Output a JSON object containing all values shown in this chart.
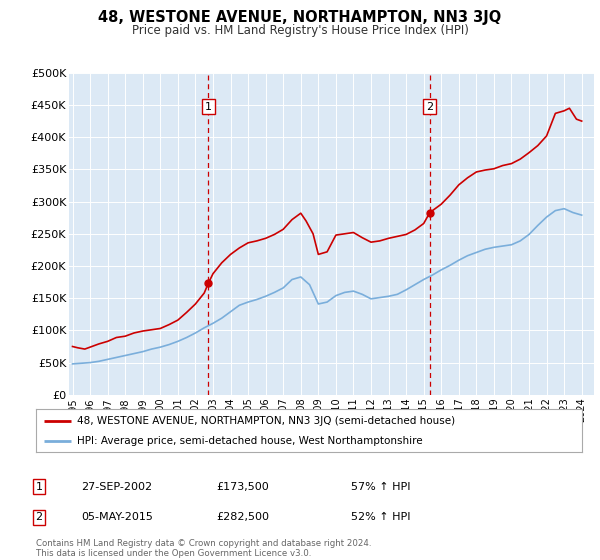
{
  "title": "48, WESTONE AVENUE, NORTHAMPTON, NN3 3JQ",
  "subtitle": "Price paid vs. HM Land Registry's House Price Index (HPI)",
  "background_color": "#ffffff",
  "plot_bg_color": "#dce9f5",
  "grid_color": "#ffffff",
  "ylim": [
    0,
    500000
  ],
  "yticks": [
    0,
    50000,
    100000,
    150000,
    200000,
    250000,
    300000,
    350000,
    400000,
    450000,
    500000
  ],
  "ytick_labels": [
    "£0",
    "£50K",
    "£100K",
    "£150K",
    "£200K",
    "£250K",
    "£300K",
    "£350K",
    "£400K",
    "£450K",
    "£500K"
  ],
  "xlim_start": 1994.8,
  "xlim_end": 2024.7,
  "xtick_years": [
    1995,
    1996,
    1997,
    1998,
    1999,
    2000,
    2001,
    2002,
    2003,
    2004,
    2005,
    2006,
    2007,
    2008,
    2009,
    2010,
    2011,
    2012,
    2013,
    2014,
    2015,
    2016,
    2017,
    2018,
    2019,
    2020,
    2021,
    2022,
    2023,
    2024
  ],
  "sale1_date": 2002.74,
  "sale1_price": 173500,
  "sale1_label": "1",
  "sale2_date": 2015.34,
  "sale2_price": 282500,
  "sale2_label": "2",
  "house_line_color": "#cc0000",
  "hpi_line_color": "#7aaedb",
  "dashed_line_color": "#cc0000",
  "legend_entries": [
    "48, WESTONE AVENUE, NORTHAMPTON, NN3 3JQ (semi-detached house)",
    "HPI: Average price, semi-detached house, West Northamptonshire"
  ],
  "table_row1": [
    "1",
    "27-SEP-2002",
    "£173,500",
    "57% ↑ HPI"
  ],
  "table_row2": [
    "2",
    "05-MAY-2015",
    "£282,500",
    "52% ↑ HPI"
  ],
  "footnote": "Contains HM Land Registry data © Crown copyright and database right 2024.\nThis data is licensed under the Open Government Licence v3.0.",
  "house_prices": [
    [
      1995.0,
      75000
    ],
    [
      1995.3,
      73000
    ],
    [
      1995.7,
      71000
    ],
    [
      1996.0,
      74000
    ],
    [
      1996.5,
      79000
    ],
    [
      1997.0,
      83000
    ],
    [
      1997.5,
      89000
    ],
    [
      1998.0,
      91000
    ],
    [
      1998.5,
      96000
    ],
    [
      1999.0,
      99000
    ],
    [
      1999.5,
      101000
    ],
    [
      2000.0,
      103000
    ],
    [
      2000.5,
      109000
    ],
    [
      2001.0,
      116000
    ],
    [
      2001.5,
      128000
    ],
    [
      2002.0,
      141000
    ],
    [
      2002.5,
      158000
    ],
    [
      2002.74,
      173500
    ],
    [
      2003.0,
      188000
    ],
    [
      2003.5,
      205000
    ],
    [
      2004.0,
      218000
    ],
    [
      2004.5,
      228000
    ],
    [
      2005.0,
      236000
    ],
    [
      2005.5,
      239000
    ],
    [
      2006.0,
      243000
    ],
    [
      2006.5,
      249000
    ],
    [
      2007.0,
      257000
    ],
    [
      2007.5,
      272000
    ],
    [
      2008.0,
      282000
    ],
    [
      2008.3,
      270000
    ],
    [
      2008.7,
      250000
    ],
    [
      2009.0,
      218000
    ],
    [
      2009.5,
      222000
    ],
    [
      2010.0,
      248000
    ],
    [
      2010.5,
      250000
    ],
    [
      2011.0,
      252000
    ],
    [
      2011.5,
      244000
    ],
    [
      2012.0,
      237000
    ],
    [
      2012.5,
      239000
    ],
    [
      2013.0,
      243000
    ],
    [
      2013.5,
      246000
    ],
    [
      2014.0,
      249000
    ],
    [
      2014.5,
      256000
    ],
    [
      2015.0,
      266000
    ],
    [
      2015.34,
      282500
    ],
    [
      2015.5,
      286000
    ],
    [
      2016.0,
      296000
    ],
    [
      2016.5,
      310000
    ],
    [
      2017.0,
      326000
    ],
    [
      2017.5,
      337000
    ],
    [
      2018.0,
      346000
    ],
    [
      2018.5,
      349000
    ],
    [
      2019.0,
      351000
    ],
    [
      2019.5,
      356000
    ],
    [
      2020.0,
      359000
    ],
    [
      2020.5,
      366000
    ],
    [
      2021.0,
      376000
    ],
    [
      2021.5,
      387000
    ],
    [
      2022.0,
      402000
    ],
    [
      2022.5,
      437000
    ],
    [
      2023.0,
      441000
    ],
    [
      2023.3,
      445000
    ],
    [
      2023.7,
      428000
    ],
    [
      2024.0,
      425000
    ]
  ],
  "hpi_prices": [
    [
      1995.0,
      48000
    ],
    [
      1995.5,
      49000
    ],
    [
      1996.0,
      50000
    ],
    [
      1996.5,
      52000
    ],
    [
      1997.0,
      55000
    ],
    [
      1997.5,
      58000
    ],
    [
      1998.0,
      61000
    ],
    [
      1998.5,
      64000
    ],
    [
      1999.0,
      67000
    ],
    [
      1999.5,
      71000
    ],
    [
      2000.0,
      74000
    ],
    [
      2000.5,
      78000
    ],
    [
      2001.0,
      83000
    ],
    [
      2001.5,
      89000
    ],
    [
      2002.0,
      96000
    ],
    [
      2002.5,
      104000
    ],
    [
      2003.0,
      111000
    ],
    [
      2003.5,
      119000
    ],
    [
      2004.0,
      129000
    ],
    [
      2004.5,
      139000
    ],
    [
      2005.0,
      144000
    ],
    [
      2005.5,
      148000
    ],
    [
      2006.0,
      153000
    ],
    [
      2006.5,
      159000
    ],
    [
      2007.0,
      166000
    ],
    [
      2007.5,
      179000
    ],
    [
      2008.0,
      183000
    ],
    [
      2008.5,
      171000
    ],
    [
      2009.0,
      141000
    ],
    [
      2009.5,
      144000
    ],
    [
      2010.0,
      154000
    ],
    [
      2010.5,
      159000
    ],
    [
      2011.0,
      161000
    ],
    [
      2011.5,
      156000
    ],
    [
      2012.0,
      149000
    ],
    [
      2012.5,
      151000
    ],
    [
      2013.0,
      153000
    ],
    [
      2013.5,
      156000
    ],
    [
      2014.0,
      163000
    ],
    [
      2014.5,
      171000
    ],
    [
      2015.0,
      179000
    ],
    [
      2015.5,
      186000
    ],
    [
      2016.0,
      194000
    ],
    [
      2016.5,
      201000
    ],
    [
      2017.0,
      209000
    ],
    [
      2017.5,
      216000
    ],
    [
      2018.0,
      221000
    ],
    [
      2018.5,
      226000
    ],
    [
      2019.0,
      229000
    ],
    [
      2019.5,
      231000
    ],
    [
      2020.0,
      233000
    ],
    [
      2020.5,
      239000
    ],
    [
      2021.0,
      249000
    ],
    [
      2021.5,
      263000
    ],
    [
      2022.0,
      276000
    ],
    [
      2022.5,
      286000
    ],
    [
      2023.0,
      289000
    ],
    [
      2023.5,
      283000
    ],
    [
      2024.0,
      279000
    ]
  ]
}
